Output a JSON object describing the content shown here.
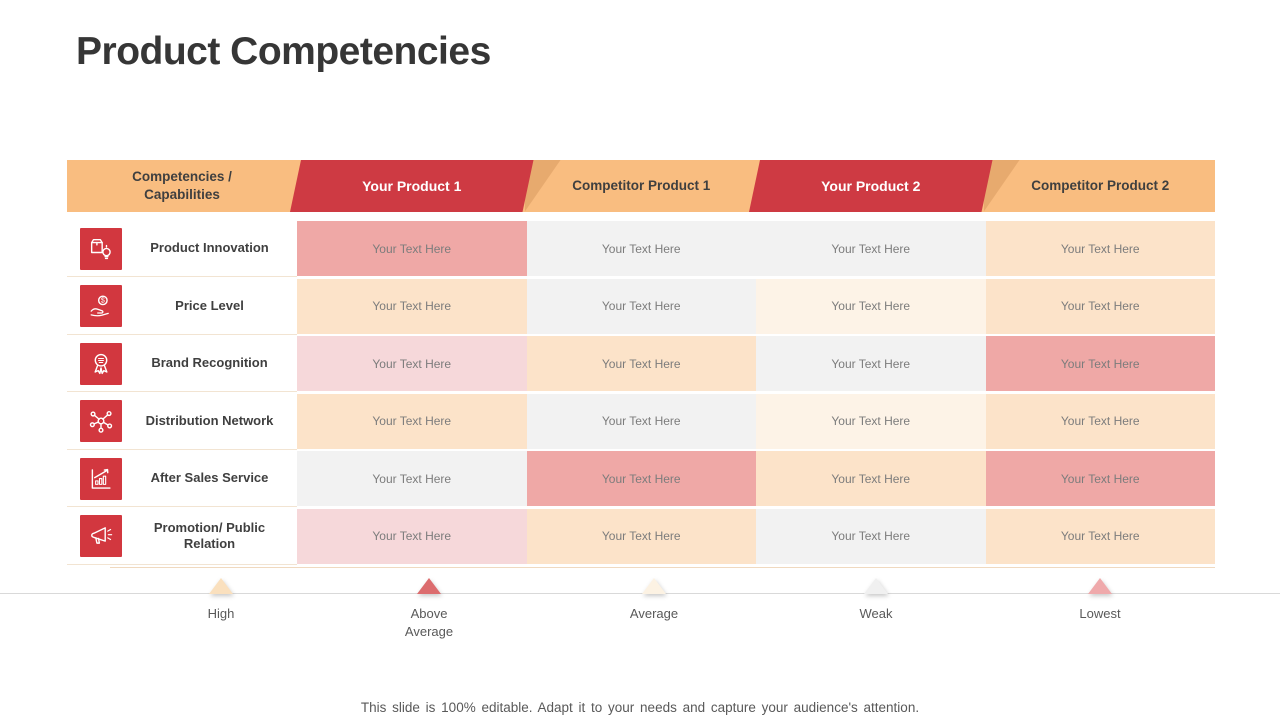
{
  "title": "Product Competencies",
  "colors": {
    "header_orange": "#F9BD80",
    "header_red": "#CE3A43",
    "icon_red": "#D2373F",
    "cell_salmon": "#EFA8A6",
    "cell_pink": "#F6D8DA",
    "cell_peach": "#FCE3C9",
    "cell_cream": "#FDF3E7",
    "cell_gray": "#F2F2F2"
  },
  "table": {
    "columns": [
      "Competencies / Capabilities",
      "Your Product 1",
      "Competitor Product 1",
      "Your Product 2",
      "Competitor Product 2"
    ],
    "cell_text": "Your Text Here",
    "rows": [
      {
        "label": "Product Innovation",
        "icon": "product-innovation-icon",
        "cells": [
          "salmon",
          "gray",
          "gray",
          "peach"
        ]
      },
      {
        "label": "Price Level",
        "icon": "price-level-icon",
        "cells": [
          "peach",
          "gray",
          "cream",
          "peach"
        ]
      },
      {
        "label": "Brand Recognition",
        "icon": "brand-recognition-icon",
        "cells": [
          "pink",
          "peach",
          "gray",
          "salmon"
        ]
      },
      {
        "label": "Distribution Network",
        "icon": "distribution-network-icon",
        "cells": [
          "peach",
          "gray",
          "cream",
          "peach"
        ]
      },
      {
        "label": "After Sales Service",
        "icon": "after-sales-service-icon",
        "cells": [
          "gray",
          "salmon",
          "peach",
          "salmon"
        ]
      },
      {
        "label": "Promotion/ Public Relation",
        "icon": "promotion-icon",
        "cells": [
          "pink",
          "peach",
          "gray",
          "peach"
        ]
      }
    ]
  },
  "legend": [
    {
      "label": "High",
      "color": "#FAE0BE"
    },
    {
      "label": "Above Average",
      "color": "#DC6C6E"
    },
    {
      "label": "Average",
      "color": "#FCF2E3"
    },
    {
      "label": "Weak",
      "color": "#F0F0F0"
    },
    {
      "label": "Lowest",
      "color": "#EFA9AB"
    }
  ],
  "footer": "This slide is 100% editable. Adapt it to your needs and capture your audience's attention."
}
